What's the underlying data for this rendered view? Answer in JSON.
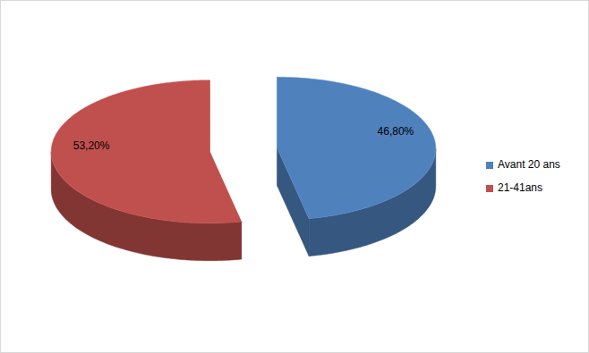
{
  "chart_data": {
    "type": "pie",
    "categories": [
      "Avant 20 ans",
      "21-41ans"
    ],
    "values": [
      46.8,
      53.2
    ],
    "value_labels": [
      "46,80%",
      "53,20%"
    ],
    "colors": [
      "#4f81bd",
      "#c0504d"
    ],
    "data_labels": true,
    "legend": "right"
  }
}
